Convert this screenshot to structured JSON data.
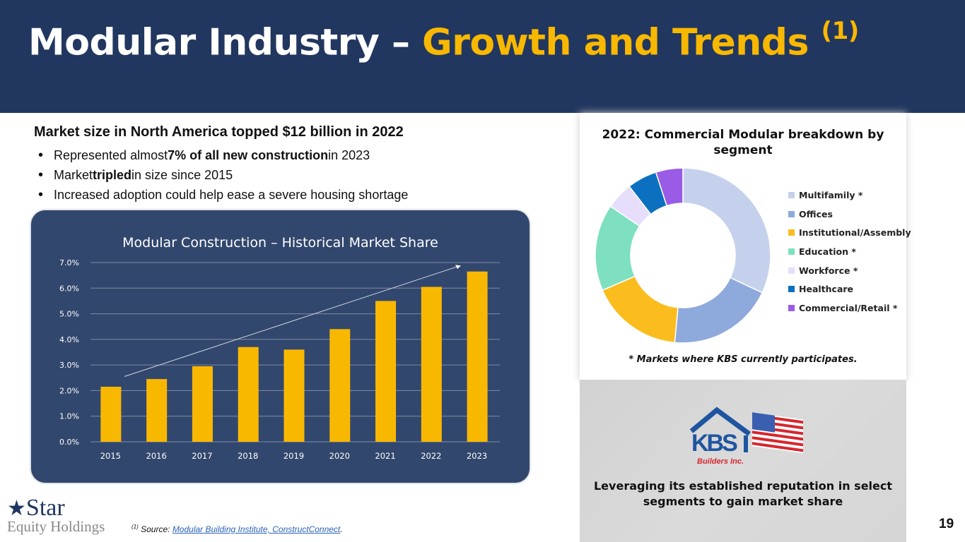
{
  "header": {
    "title_main": "Modular Industry – ",
    "title_accent": "Growth and Trends",
    "title_sup": "(1)"
  },
  "intro": {
    "lead": "Market size in North America topped $12 billion in 2022",
    "bullets": [
      {
        "pre": "Represented almost ",
        "bold": "7% of all new construction",
        "post": " in 2023"
      },
      {
        "pre": "Market ",
        "bold": "tripled",
        "post": " in size since 2015"
      },
      {
        "pre": "Increased adoption could help ease a severe housing shortage",
        "bold": "",
        "post": ""
      }
    ]
  },
  "chart_data": [
    {
      "type": "bar",
      "title": "Modular Construction – Historical Market Share",
      "categories": [
        "2015",
        "2016",
        "2017",
        "2018",
        "2019",
        "2020",
        "2021",
        "2022",
        "2023"
      ],
      "values": [
        2.15,
        2.45,
        2.95,
        3.7,
        3.6,
        4.4,
        5.5,
        6.05,
        6.65
      ],
      "ylim": [
        0,
        7
      ],
      "yticks": [
        "0.0%",
        "1.0%",
        "2.0%",
        "3.0%",
        "4.0%",
        "5.0%",
        "6.0%",
        "7.0%"
      ],
      "xlabel": "",
      "ylabel": "",
      "grid": true,
      "bar_color": "#f9b800",
      "annotation": "trend arrow"
    },
    {
      "type": "pie",
      "title": "2022: Commercial Modular breakdown by segment",
      "categories": [
        "Multifamily *",
        "Offices",
        "Institutional/Assembly",
        "Education *",
        "Workforce *",
        "Healthcare",
        "Commercial/Retail *"
      ],
      "values": [
        32,
        19.5,
        17,
        16,
        5,
        5.5,
        5
      ],
      "colors": [
        "#c5d1ec",
        "#8ea9db",
        "#fbbd1e",
        "#7ee0c0",
        "#e6defa",
        "#0b70bf",
        "#9a5ce6"
      ],
      "legend": "right",
      "note": "* Markets where KBS currently participates."
    }
  ],
  "kbs": {
    "logo_text": "KBS",
    "logo_sub": "Builders Inc.",
    "tagline": "Leveraging its established reputation in select segments to gain market share"
  },
  "footer": {
    "logo_line1": "Star",
    "logo_line2": "Equity Holdings",
    "src_sup": "(1)",
    "src_label": " Source: ",
    "src_link": "Modular Building Institute, ConstructConnect",
    "src_end": ".",
    "page": "19"
  }
}
